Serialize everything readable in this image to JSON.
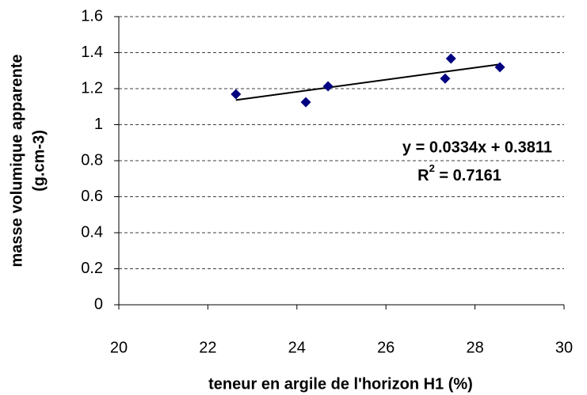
{
  "chart_data": {
    "type": "scatter",
    "x_label": "teneur en argile de l'horizon H1 (%)",
    "y_label": [
      "masse volumique apparente",
      "(g.cm-3)"
    ],
    "series": [
      {
        "color": "#000080",
        "x": [
          22.63,
          24.2,
          24.7,
          27.33,
          27.46,
          28.56
        ],
        "values": [
          1.169,
          1.125,
          1.213,
          1.256,
          1.367,
          1.319
        ]
      }
    ],
    "trendline": {
      "color": "#000000",
      "x": [
        22.63,
        28.56
      ],
      "values": [
        1.137,
        1.335
      ]
    },
    "equation": "y = 0.0334x + 0.3811",
    "r2": {
      "base": "R",
      "sup": "2",
      "text": " = 0.7161"
    },
    "xlim": [
      20,
      30
    ],
    "xticks": [
      20,
      22,
      24,
      26,
      28,
      30
    ],
    "ylim": [
      0,
      1.6
    ],
    "yticks": [
      0,
      0.2,
      0.4,
      0.6,
      0.8,
      1,
      1.2,
      1.4,
      1.6
    ],
    "grid": true
  }
}
